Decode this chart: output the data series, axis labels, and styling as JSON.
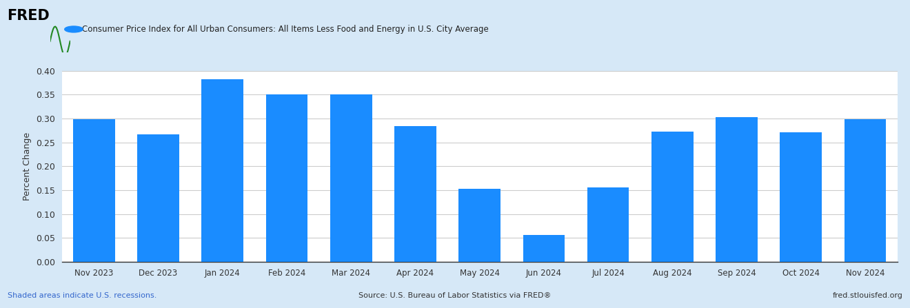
{
  "categories": [
    "Nov 2023",
    "Dec 2023",
    "Jan 2024",
    "Feb 2024",
    "Mar 2024",
    "Apr 2024",
    "May 2024",
    "Jun 2024",
    "Jul 2024",
    "Aug 2024",
    "Sep 2024",
    "Oct 2024",
    "Nov 2024"
  ],
  "values": [
    0.299,
    0.267,
    0.383,
    0.35,
    0.35,
    0.284,
    0.153,
    0.056,
    0.156,
    0.272,
    0.303,
    0.271,
    0.299
  ],
  "bar_color": "#1a8cff",
  "figure_bg_color": "#d6e8f7",
  "plot_bg_color": "#ffffff",
  "ylabel": "Percent Change",
  "ylim": [
    0.0,
    0.4
  ],
  "yticks": [
    0.0,
    0.05,
    0.1,
    0.15,
    0.2,
    0.25,
    0.3,
    0.35,
    0.4
  ],
  "legend_label": "Consumer Price Index for All Urban Consumers: All Items Less Food and Energy in U.S. City Average",
  "legend_dot_color": "#1a8cff",
  "footer_left": "Shaded areas indicate U.S. recessions.",
  "footer_center": "Source: U.S. Bureau of Labor Statistics via FRED®",
  "footer_right": "fred.stlouisfed.org",
  "footer_left_color": "#3366cc",
  "footer_other_color": "#333333",
  "grid_color": "#cccccc",
  "tick_label_color": "#333333",
  "bottom_line_color": "#333333"
}
